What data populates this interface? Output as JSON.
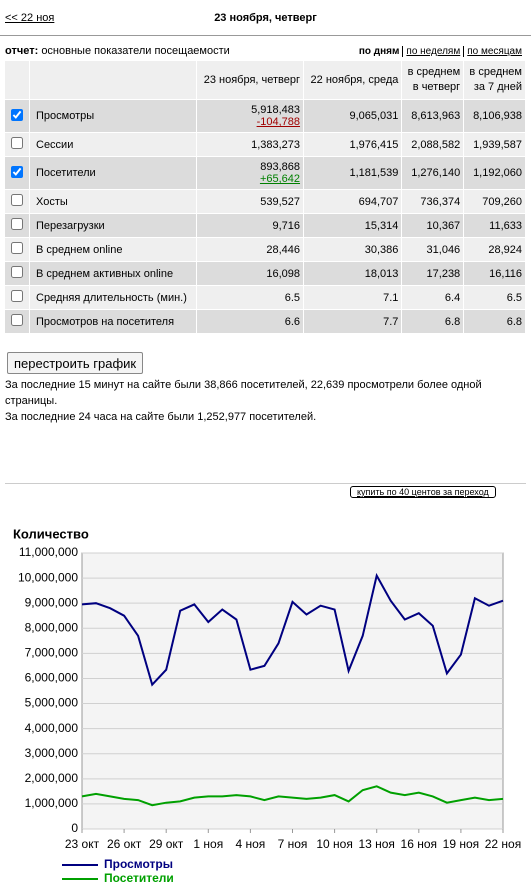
{
  "nav": {
    "back_link": "<< 22 ноя",
    "title": "23 ноября, четверг"
  },
  "report": {
    "label": "отчет:",
    "text": "основные показатели посещаемости",
    "tabs": [
      {
        "text": "по дням",
        "active": true
      },
      {
        "text": "по неделям",
        "active": false
      },
      {
        "text": "по месяцам",
        "active": false
      }
    ]
  },
  "table": {
    "columns": [
      [
        "23 ноября, четверг"
      ],
      [
        "22 ноября, среда"
      ],
      [
        "в среднем",
        "в четверг"
      ],
      [
        "в среднем",
        "за 7 дней"
      ]
    ],
    "rows": [
      {
        "label": "Просмотры",
        "checked": true,
        "values": [
          "5,918,483",
          "9,065,031",
          "8,613,963",
          "8,106,938"
        ],
        "change": "-104,788",
        "change_color": "#a00000"
      },
      {
        "label": "Сессии",
        "checked": false,
        "values": [
          "1,383,273",
          "1,976,415",
          "2,088,582",
          "1,939,587"
        ]
      },
      {
        "label": "Посетители",
        "checked": true,
        "values": [
          "893,868",
          "1,181,539",
          "1,276,140",
          "1,192,060"
        ],
        "change": "+65,642",
        "change_color": "#008000"
      },
      {
        "label": "Хосты",
        "checked": false,
        "values": [
          "539,527",
          "694,707",
          "736,374",
          "709,260"
        ]
      },
      {
        "label": "Перезагрузки",
        "checked": false,
        "values": [
          "9,716",
          "15,314",
          "10,367",
          "11,633"
        ]
      },
      {
        "label": "В среднем online",
        "checked": false,
        "values": [
          "28,446",
          "30,386",
          "31,046",
          "28,924"
        ]
      },
      {
        "label": "В среднем активных online",
        "checked": false,
        "values": [
          "16,098",
          "18,013",
          "17,238",
          "16,116"
        ]
      },
      {
        "label": "Средняя длительность (мин.)",
        "checked": false,
        "values": [
          "6.5",
          "7.1",
          "6.4",
          "6.5"
        ]
      },
      {
        "label": "Просмотров на посетителя",
        "checked": false,
        "values": [
          "6.6",
          "7.7",
          "6.8",
          "6.8"
        ]
      }
    ]
  },
  "rebuild_button": "перестроить график",
  "summary": [
    "За последние 15 минут на сайте были 38,866 посетителей, 22,639 просмотрели более одной страницы.",
    "За последние 24 часа на сайте были 1,252,977 посетителей."
  ],
  "buy_button": "купить по 40 центов за переход",
  "chart_data": {
    "type": "line",
    "title": "Количество",
    "categories": [
      "23 окт",
      null,
      null,
      "26 окт",
      null,
      null,
      "29 окт",
      null,
      null,
      "1 ноя",
      null,
      null,
      "4 ноя",
      null,
      null,
      "7 ноя",
      null,
      null,
      "10 ноя",
      null,
      null,
      "13 ноя",
      null,
      null,
      "16 ноя",
      null,
      null,
      "19 ноя",
      null,
      null,
      "22 ноя"
    ],
    "series": [
      {
        "name": "Просмотры",
        "color": "#000080",
        "values": [
          8950000,
          9000000,
          8800000,
          8500000,
          7700000,
          5750000,
          6350000,
          8700000,
          8950000,
          8250000,
          8750000,
          8350000,
          6350000,
          6500000,
          7400000,
          9050000,
          8550000,
          8900000,
          8750000,
          6300000,
          7700000,
          10100000,
          9100000,
          8350000,
          8600000,
          8100000,
          6200000,
          6950000,
          9200000,
          8900000,
          9100000
        ]
      },
      {
        "name": "Посетители",
        "color": "#00a000",
        "values": [
          1300000,
          1400000,
          1300000,
          1200000,
          1150000,
          950000,
          1050000,
          1100000,
          1250000,
          1300000,
          1300000,
          1350000,
          1300000,
          1150000,
          1300000,
          1250000,
          1200000,
          1250000,
          1350000,
          1100000,
          1550000,
          1700000,
          1450000,
          1350000,
          1450000,
          1300000,
          1050000,
          1150000,
          1250000,
          1150000,
          1200000
        ]
      }
    ],
    "ylim": [
      0,
      11000000
    ],
    "yticks": [
      0,
      {
        "value": 1000000,
        "label": "1,000,000"
      },
      {
        "value": 2000000,
        "label": "2,000,000"
      },
      {
        "value": 3000000,
        "label": "3,000,000"
      },
      {
        "value": 4000000,
        "label": "4,000,000"
      },
      {
        "value": 5000000,
        "label": "5,000,000"
      },
      {
        "value": 6000000,
        "label": "6,000,000"
      },
      {
        "value": 7000000,
        "label": "7,000,000"
      },
      {
        "value": 8000000,
        "label": "8,000,000"
      },
      {
        "value": 9000000,
        "label": "9,000,000"
      },
      {
        "value": 10000000,
        "label": "10,000,000"
      },
      {
        "value": 11000000,
        "label": "11,000,000"
      }
    ],
    "grid": true,
    "legend": "bottom-left"
  }
}
